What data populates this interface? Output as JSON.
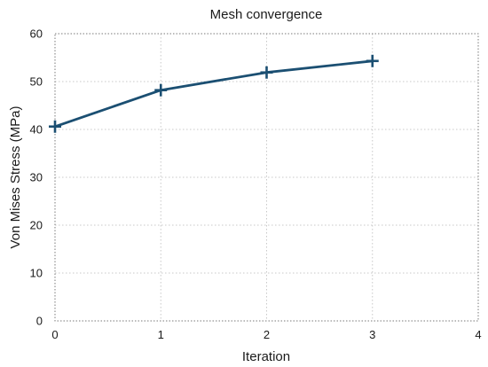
{
  "chart_data": {
    "type": "line",
    "title": "Mesh convergence",
    "xlabel": "Iteration",
    "ylabel": "Von Mises Stress (MPa)",
    "xlim": [
      0,
      4
    ],
    "ylim": [
      0,
      60
    ],
    "xticks": [
      0,
      1,
      2,
      3,
      4
    ],
    "yticks": [
      0,
      10,
      20,
      30,
      40,
      50,
      60
    ],
    "grid": true,
    "series": [
      {
        "marker": "plus",
        "color": "#1b4f72",
        "x": [
          0,
          1,
          2,
          3
        ],
        "y": [
          40.6,
          48.2,
          51.9,
          54.3
        ]
      }
    ]
  }
}
